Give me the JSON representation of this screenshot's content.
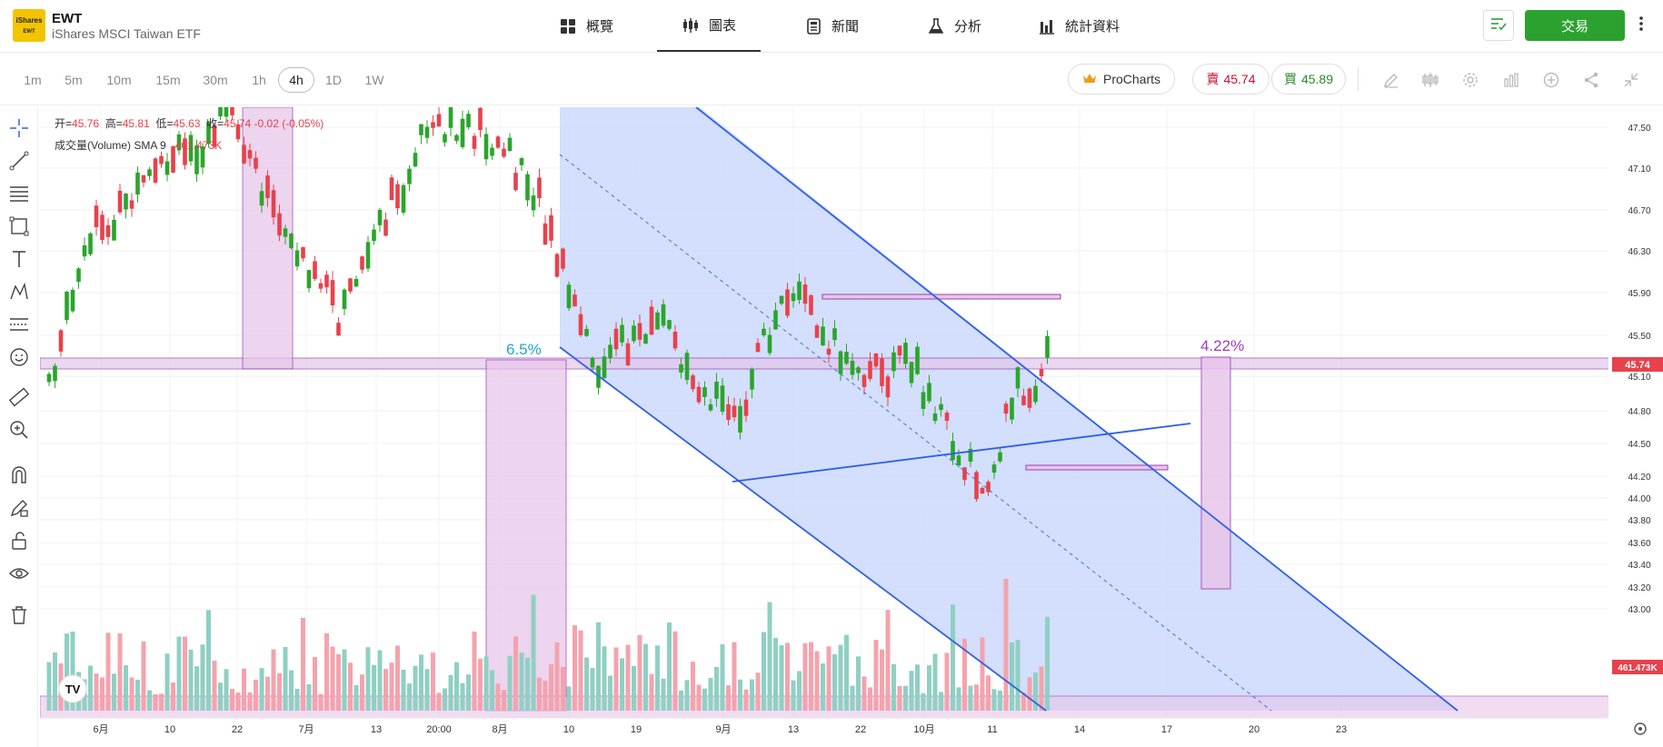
{
  "header": {
    "logo_text": "iShares",
    "logo_sub": "EWT",
    "ticker": "EWT",
    "fund_name": "iShares MSCI Taiwan ETF",
    "tabs": [
      {
        "label": "概覽",
        "icon": "overview-grid-icon"
      },
      {
        "label": "圖表",
        "icon": "candlestick-icon"
      },
      {
        "label": "新聞",
        "icon": "news-icon"
      },
      {
        "label": "分析",
        "icon": "flask-icon"
      },
      {
        "label": "統計資料",
        "icon": "bar-stats-icon"
      }
    ],
    "active_tab": "圖表",
    "trade_label": "交易"
  },
  "toolbar": {
    "timeframes": [
      "1m",
      "5m",
      "10m",
      "15m",
      "30m",
      "1h",
      "4h",
      "1D",
      "1W"
    ],
    "active_timeframe": "4h",
    "procharts_label": "ProCharts",
    "sell_label": "賣",
    "sell_price": "45.74",
    "buy_label": "買",
    "buy_price": "45.89"
  },
  "legend": {
    "open_label": "开=",
    "open": "45.76",
    "high_label": "高=",
    "high": "45.81",
    "low_label": "低=",
    "low": "45.63",
    "close_label": "收=",
    "close": "45.74",
    "change": "-0.02 (-0.05%)",
    "volume_label": "成交量(Volume) SMA 9",
    "volume_value": "461.473K"
  },
  "annotations": {
    "left_measure": "6.5%",
    "right_measure": "4.22%"
  },
  "colors": {
    "up": "#2aa52c",
    "down": "#e8414c",
    "volume_up": "#8fd0c3",
    "volume_down": "#f4a3ad",
    "channel_fill": "#c8d7fb",
    "channel_line": "#2f5fea",
    "measure_purple": "#9c3fb6",
    "measure_fill": "#e8c6ea",
    "left_measure_text": "#20a7c9",
    "accent_green": "#2ba22f"
  },
  "chart_data": {
    "type": "candlestick",
    "timeframe": "4h",
    "yaxis_ticks": [
      "47.50",
      "47.10",
      "46.70",
      "46.30",
      "45.90",
      "45.50",
      "45.10",
      "44.80",
      "44.50",
      "44.20",
      "44.00",
      "43.80",
      "43.60",
      "43.40",
      "43.20",
      "43.00"
    ],
    "xaxis_ticks": [
      "6月",
      "10",
      "22",
      "7月",
      "13",
      "20:00",
      "8月",
      "10",
      "19",
      "9月",
      "13",
      "22",
      "10月",
      "11",
      "14",
      "17",
      "20",
      "23"
    ],
    "last_price": "45.74",
    "last_volume": "461.473K"
  }
}
